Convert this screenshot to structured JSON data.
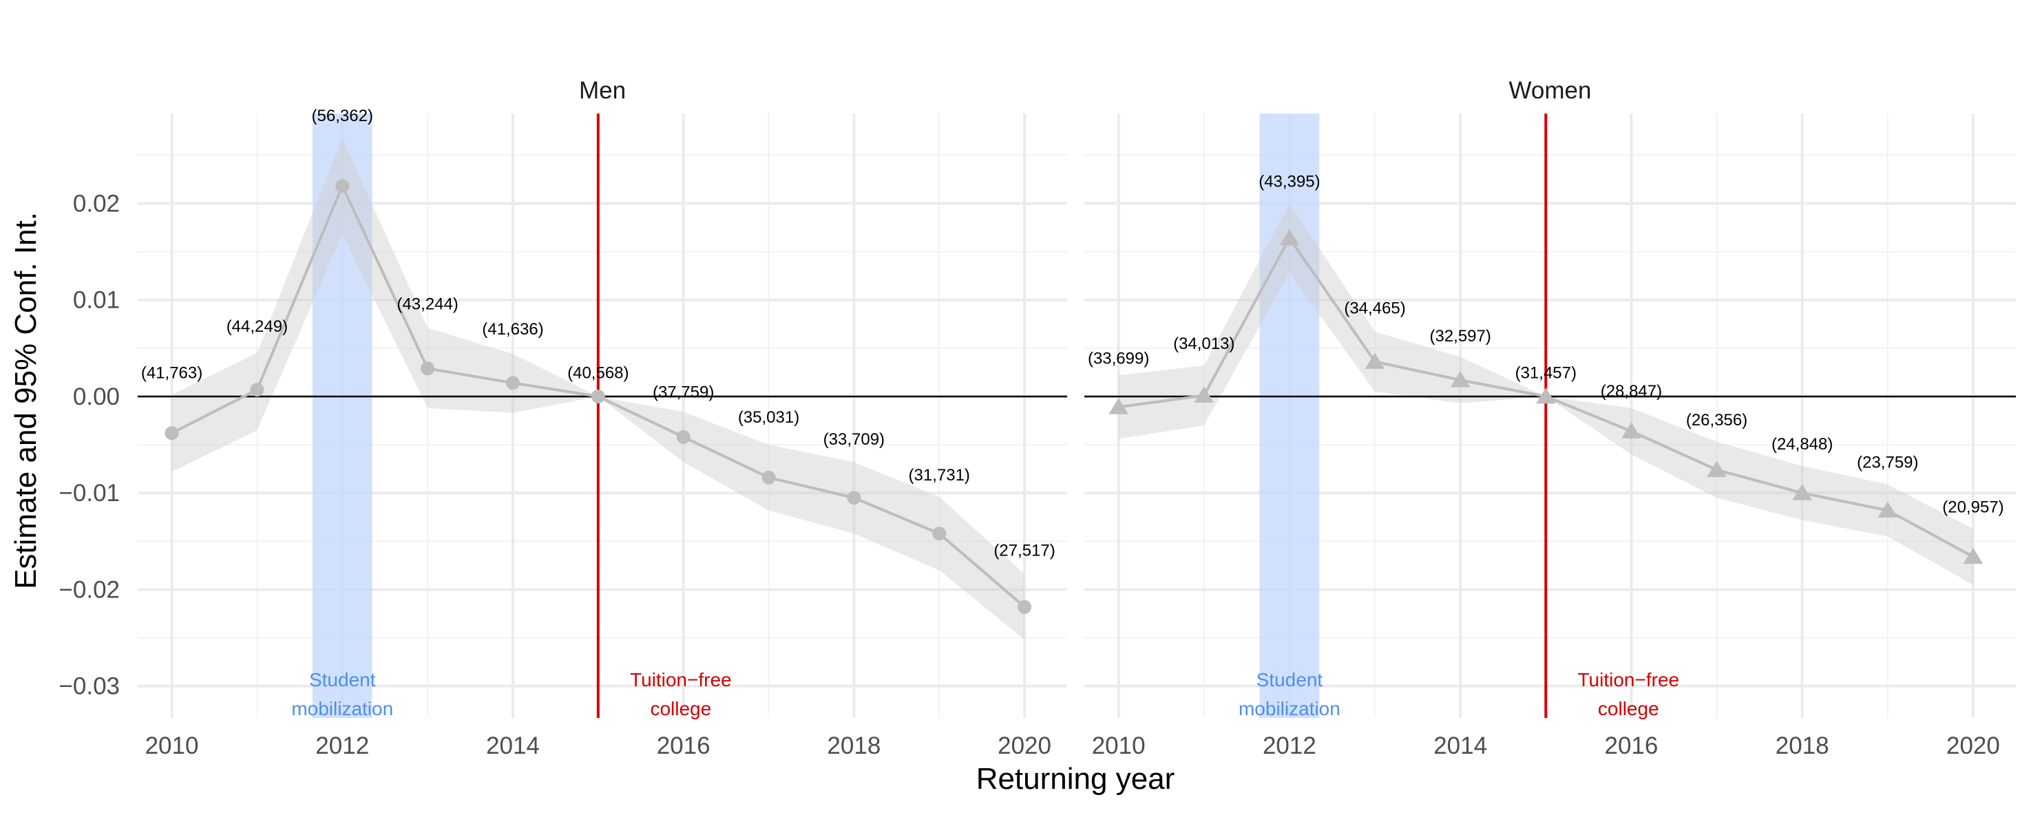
{
  "chart_data": {
    "type": "line",
    "ylabel": "Estimate and 95% Conf. Int.",
    "xlabel": "Returning year",
    "xlim": [
      2009.6,
      2020.5
    ],
    "ylim": [
      -0.0333,
      0.0293
    ],
    "x_ticks": [
      2010,
      2012,
      2014,
      2016,
      2018,
      2020
    ],
    "x_tick_labels": [
      "2010",
      "2012",
      "2014",
      "2016",
      "2018",
      "2020"
    ],
    "y_ticks": [
      -0.03,
      -0.02,
      -0.01,
      0.0,
      0.01,
      0.02
    ],
    "y_tick_labels": [
      "−0.03",
      "−0.02",
      "−0.01",
      "0.00",
      "0.01",
      "0.02"
    ],
    "grid": true,
    "reference_hline": 0,
    "colors": {
      "series": "#bdbdbd",
      "ribbon": "#e5e5e5",
      "mobilization_band": "#c6dafc",
      "mobilization_text": "#4d8ef0",
      "tuition_line": "#d40000",
      "grid": "#ebebeb",
      "zero_line": "#000000"
    },
    "panels": [
      {
        "title": "Men",
        "marker": "circle",
        "x": [
          2010,
          2011,
          2012,
          2013,
          2014,
          2015,
          2016,
          2017,
          2018,
          2019,
          2020
        ],
        "values": [
          -0.0038,
          0.0007,
          0.0218,
          0.0029,
          0.0014,
          0.0,
          -0.0042,
          -0.0084,
          -0.0105,
          -0.0142,
          -0.0218
        ],
        "ci_lower": [
          -0.0078,
          -0.0035,
          0.0168,
          -0.0012,
          -0.0017,
          0.0,
          -0.0068,
          -0.0118,
          -0.0142,
          -0.018,
          -0.0252
        ],
        "ci_upper": [
          0.0002,
          0.0045,
          0.0268,
          0.0071,
          0.0044,
          0.0,
          -0.0016,
          -0.005,
          -0.0068,
          -0.0104,
          -0.0184
        ],
        "counts": [
          "(41,763)",
          "(44,249)",
          "(56,362)",
          "(43,244)",
          "(41,636)",
          "(40,568)",
          "(37,759)",
          "(35,031)",
          "(33,709)",
          "(31,731)",
          "(27,517)"
        ],
        "count_y": [
          0.0019,
          0.0067,
          0.0285,
          0.009,
          0.0064,
          0.0019,
          -0.0001,
          -0.0027,
          -0.005,
          -0.0087,
          -0.0165
        ]
      },
      {
        "title": "Women",
        "marker": "triangle",
        "x": [
          2010,
          2011,
          2012,
          2013,
          2014,
          2015,
          2016,
          2017,
          2018,
          2019,
          2020
        ],
        "values": [
          -0.0011,
          0.0001,
          0.0164,
          0.0036,
          0.0017,
          0.0,
          -0.0036,
          -0.0076,
          -0.01,
          -0.0118,
          -0.0166
        ],
        "ci_lower": [
          -0.0044,
          -0.003,
          0.0128,
          0.0005,
          -0.0007,
          0.0,
          -0.006,
          -0.0105,
          -0.0128,
          -0.0145,
          -0.0195
        ],
        "ci_upper": [
          0.0022,
          0.0032,
          0.02,
          0.0067,
          0.0041,
          0.0,
          -0.0012,
          -0.0047,
          -0.0072,
          -0.0091,
          -0.0137
        ],
        "counts": [
          "(33,699)",
          "(34,013)",
          "(43,395)",
          "(34,465)",
          "(32,597)",
          "(31,457)",
          "(28,847)",
          "(26,356)",
          "(24,848)",
          "(23,759)",
          "(20,957)"
        ],
        "count_y": [
          0.0034,
          0.0049,
          0.0217,
          0.0086,
          0.0057,
          0.0019,
          0.0,
          -0.003,
          -0.0055,
          -0.0074,
          -0.012
        ]
      }
    ],
    "annotations": {
      "mobilization": {
        "x_range": [
          2011.65,
          2012.35
        ],
        "label_line1": "Student",
        "label_line2": "mobilization"
      },
      "tuition": {
        "x": 2015,
        "label_line1": "Tuition−free",
        "label_line2": "college"
      }
    }
  }
}
